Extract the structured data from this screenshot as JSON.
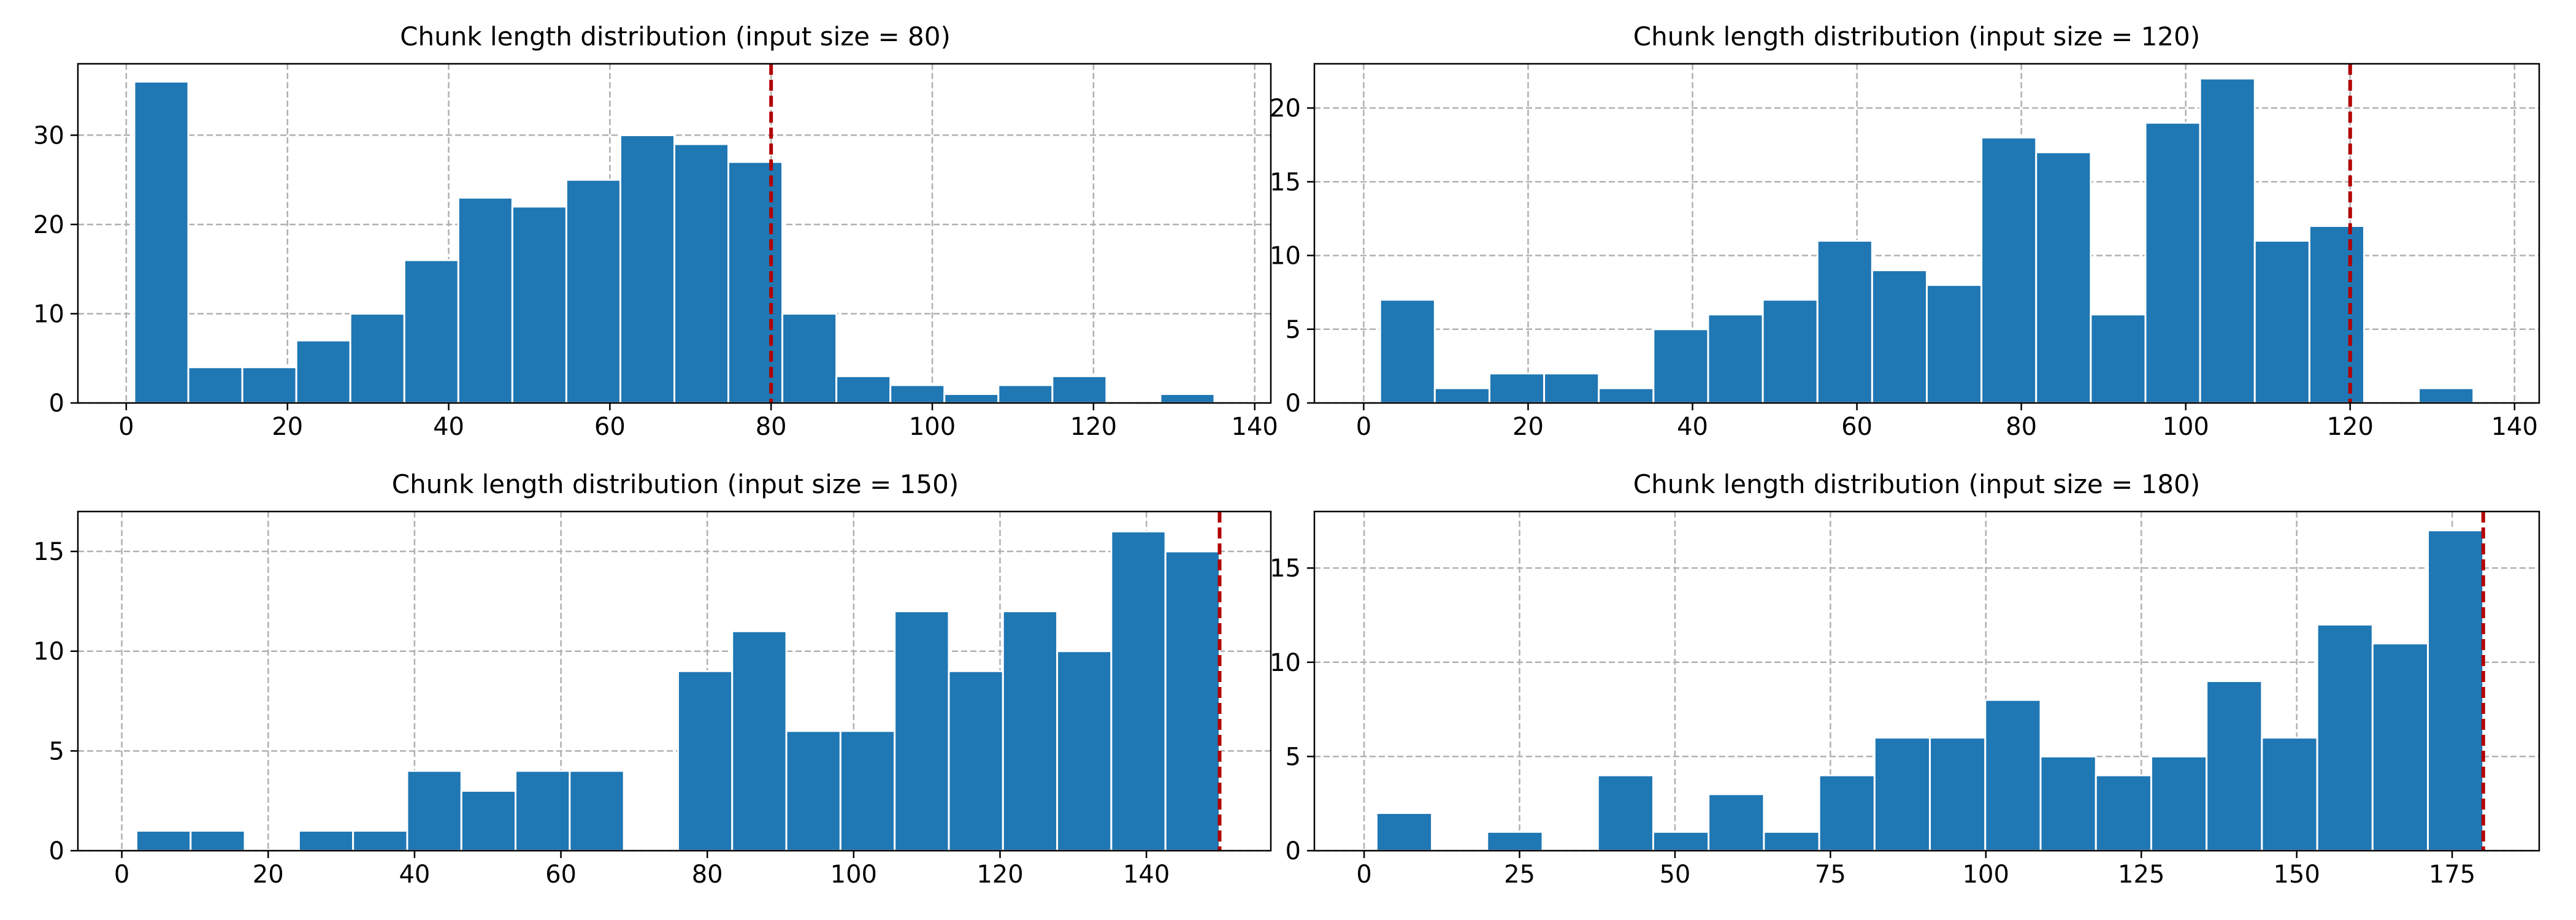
{
  "chart_data": [
    {
      "type": "bar",
      "title": "Chunk length distribution (input size = 80)",
      "xlabel": "",
      "ylabel": "",
      "xlim": [
        -6,
        142
      ],
      "ylim": [
        0,
        38
      ],
      "xticks": [
        0,
        20,
        40,
        60,
        80,
        100,
        120,
        140
      ],
      "yticks": [
        0,
        10,
        20,
        30
      ],
      "grid": true,
      "bar_color": "#1f77b4",
      "bins": [
        {
          "x0": 1,
          "x1": 7.7,
          "count": 36
        },
        {
          "x0": 7.7,
          "x1": 14.4,
          "count": 4
        },
        {
          "x0": 14.4,
          "x1": 21.1,
          "count": 4
        },
        {
          "x0": 21.1,
          "x1": 27.8,
          "count": 7
        },
        {
          "x0": 27.8,
          "x1": 34.5,
          "count": 10
        },
        {
          "x0": 34.5,
          "x1": 41.2,
          "count": 16
        },
        {
          "x0": 41.2,
          "x1": 47.9,
          "count": 23
        },
        {
          "x0": 47.9,
          "x1": 54.6,
          "count": 22
        },
        {
          "x0": 54.6,
          "x1": 61.3,
          "count": 25
        },
        {
          "x0": 61.3,
          "x1": 68.0,
          "count": 30
        },
        {
          "x0": 68.0,
          "x1": 74.7,
          "count": 29
        },
        {
          "x0": 74.7,
          "x1": 81.4,
          "count": 27
        },
        {
          "x0": 81.4,
          "x1": 88.1,
          "count": 10
        },
        {
          "x0": 88.1,
          "x1": 94.8,
          "count": 3
        },
        {
          "x0": 94.8,
          "x1": 101.5,
          "count": 2
        },
        {
          "x0": 101.5,
          "x1": 108.2,
          "count": 1
        },
        {
          "x0": 108.2,
          "x1": 114.9,
          "count": 2
        },
        {
          "x0": 114.9,
          "x1": 121.6,
          "count": 3
        },
        {
          "x0": 121.6,
          "x1": 128.3,
          "count": 0
        },
        {
          "x0": 128.3,
          "x1": 135,
          "count": 1
        }
      ],
      "reference_line": {
        "x": 80,
        "color": "#b20000",
        "style": "dashed"
      }
    },
    {
      "type": "bar",
      "title": "Chunk length distribution (input size = 120)",
      "xlabel": "",
      "ylabel": "",
      "xlim": [
        -6,
        143
      ],
      "ylim": [
        0,
        23
      ],
      "xticks": [
        0,
        20,
        40,
        60,
        80,
        100,
        120,
        140
      ],
      "yticks": [
        0,
        5,
        10,
        15,
        20
      ],
      "grid": true,
      "bar_color": "#1f77b4",
      "bins": [
        {
          "x0": 2,
          "x1": 8.65,
          "count": 7
        },
        {
          "x0": 8.65,
          "x1": 15.3,
          "count": 1
        },
        {
          "x0": 15.3,
          "x1": 21.95,
          "count": 2
        },
        {
          "x0": 21.95,
          "x1": 28.6,
          "count": 2
        },
        {
          "x0": 28.6,
          "x1": 35.25,
          "count": 1
        },
        {
          "x0": 35.25,
          "x1": 41.9,
          "count": 5
        },
        {
          "x0": 41.9,
          "x1": 48.55,
          "count": 6
        },
        {
          "x0": 48.55,
          "x1": 55.2,
          "count": 7
        },
        {
          "x0": 55.2,
          "x1": 61.85,
          "count": 11
        },
        {
          "x0": 61.85,
          "x1": 68.5,
          "count": 9
        },
        {
          "x0": 68.5,
          "x1": 75.15,
          "count": 8
        },
        {
          "x0": 75.15,
          "x1": 81.8,
          "count": 18
        },
        {
          "x0": 81.8,
          "x1": 88.45,
          "count": 17
        },
        {
          "x0": 88.45,
          "x1": 95.1,
          "count": 6
        },
        {
          "x0": 95.1,
          "x1": 101.75,
          "count": 19
        },
        {
          "x0": 101.75,
          "x1": 108.4,
          "count": 22
        },
        {
          "x0": 108.4,
          "x1": 115.05,
          "count": 11
        },
        {
          "x0": 115.05,
          "x1": 121.7,
          "count": 12
        },
        {
          "x0": 121.7,
          "x1": 128.35,
          "count": 0
        },
        {
          "x0": 128.35,
          "x1": 135,
          "count": 1
        }
      ],
      "reference_line": {
        "x": 120,
        "color": "#b20000",
        "style": "dashed"
      }
    },
    {
      "type": "bar",
      "title": "Chunk length distribution (input size = 150)",
      "xlabel": "",
      "ylabel": "",
      "xlim": [
        -6,
        157
      ],
      "ylim": [
        0,
        17
      ],
      "xticks": [
        0,
        20,
        40,
        60,
        80,
        100,
        120,
        140
      ],
      "yticks": [
        0,
        5,
        10,
        15
      ],
      "grid": true,
      "bar_color": "#1f77b4",
      "bins": [
        {
          "x0": 2,
          "x1": 9.4,
          "count": 1
        },
        {
          "x0": 9.4,
          "x1": 16.8,
          "count": 1
        },
        {
          "x0": 16.8,
          "x1": 24.2,
          "count": 0
        },
        {
          "x0": 24.2,
          "x1": 31.6,
          "count": 1
        },
        {
          "x0": 31.6,
          "x1": 39.0,
          "count": 1
        },
        {
          "x0": 39.0,
          "x1": 46.4,
          "count": 4
        },
        {
          "x0": 46.4,
          "x1": 53.8,
          "count": 3
        },
        {
          "x0": 53.8,
          "x1": 61.2,
          "count": 4
        },
        {
          "x0": 61.2,
          "x1": 68.6,
          "count": 4
        },
        {
          "x0": 68.6,
          "x1": 76.0,
          "count": 0
        },
        {
          "x0": 76.0,
          "x1": 83.4,
          "count": 9
        },
        {
          "x0": 83.4,
          "x1": 90.8,
          "count": 11
        },
        {
          "x0": 90.8,
          "x1": 98.2,
          "count": 6
        },
        {
          "x0": 98.2,
          "x1": 105.6,
          "count": 6
        },
        {
          "x0": 105.6,
          "x1": 113.0,
          "count": 12
        },
        {
          "x0": 113.0,
          "x1": 120.4,
          "count": 9
        },
        {
          "x0": 120.4,
          "x1": 127.8,
          "count": 12
        },
        {
          "x0": 127.8,
          "x1": 135.2,
          "count": 10
        },
        {
          "x0": 135.2,
          "x1": 142.6,
          "count": 16
        },
        {
          "x0": 142.6,
          "x1": 150,
          "count": 15
        }
      ],
      "reference_line": {
        "x": 150,
        "color": "#b20000",
        "style": "dashed"
      }
    },
    {
      "type": "bar",
      "title": "Chunk length distribution (input size = 180)",
      "xlabel": "",
      "ylabel": "",
      "xlim": [
        -8,
        189
      ],
      "ylim": [
        0,
        18
      ],
      "xticks": [
        0,
        25,
        50,
        75,
        100,
        125,
        150,
        175
      ],
      "yticks": [
        0,
        5,
        10,
        15
      ],
      "grid": true,
      "bar_color": "#1f77b4",
      "bins": [
        {
          "x0": 2,
          "x1": 10.9,
          "count": 2
        },
        {
          "x0": 10.9,
          "x1": 19.8,
          "count": 0
        },
        {
          "x0": 19.8,
          "x1": 28.7,
          "count": 1
        },
        {
          "x0": 28.7,
          "x1": 37.6,
          "count": 0
        },
        {
          "x0": 37.6,
          "x1": 46.5,
          "count": 4
        },
        {
          "x0": 46.5,
          "x1": 55.4,
          "count": 1
        },
        {
          "x0": 55.4,
          "x1": 64.3,
          "count": 3
        },
        {
          "x0": 64.3,
          "x1": 73.2,
          "count": 1
        },
        {
          "x0": 73.2,
          "x1": 82.1,
          "count": 4
        },
        {
          "x0": 82.1,
          "x1": 91.0,
          "count": 6
        },
        {
          "x0": 91.0,
          "x1": 99.9,
          "count": 6
        },
        {
          "x0": 99.9,
          "x1": 108.8,
          "count": 8
        },
        {
          "x0": 108.8,
          "x1": 117.7,
          "count": 5
        },
        {
          "x0": 117.7,
          "x1": 126.6,
          "count": 4
        },
        {
          "x0": 126.6,
          "x1": 135.5,
          "count": 5
        },
        {
          "x0": 135.5,
          "x1": 144.4,
          "count": 9
        },
        {
          "x0": 144.4,
          "x1": 153.3,
          "count": 6
        },
        {
          "x0": 153.3,
          "x1": 162.2,
          "count": 12
        },
        {
          "x0": 162.2,
          "x1": 171.1,
          "count": 11
        },
        {
          "x0": 171.1,
          "x1": 180,
          "count": 17
        }
      ],
      "reference_line": {
        "x": 180,
        "color": "#b20000",
        "style": "dashed"
      }
    }
  ]
}
